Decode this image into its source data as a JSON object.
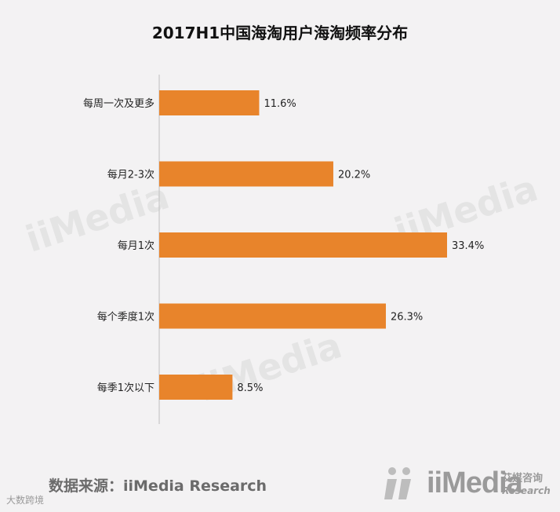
{
  "chart_data": {
    "type": "bar",
    "orientation": "horizontal",
    "title": "2017H1中国海淘用户海淘频率分布",
    "categories": [
      "每周一次及更多",
      "每月2-3次",
      "每月1次",
      "每个季度1次",
      "每季1次以下"
    ],
    "values": [
      11.6,
      20.2,
      33.4,
      26.3,
      8.5
    ],
    "value_labels": [
      "11.6%",
      "20.2%",
      "33.4%",
      "26.3%",
      "8.5%"
    ],
    "xlim": [
      0,
      33.4
    ],
    "grid": false,
    "bar_color": "#e8842b"
  },
  "footer": {
    "source": "数据来源：iiMedia Research",
    "logo_text": "iiMedia",
    "logo_cn": "艾媒咨询",
    "logo_en": "Research",
    "weibo_mark": "大数跨境"
  },
  "colors": {
    "background": "#f3f2f3",
    "bar": "#e8842b",
    "axis": "#bfbfbf"
  }
}
